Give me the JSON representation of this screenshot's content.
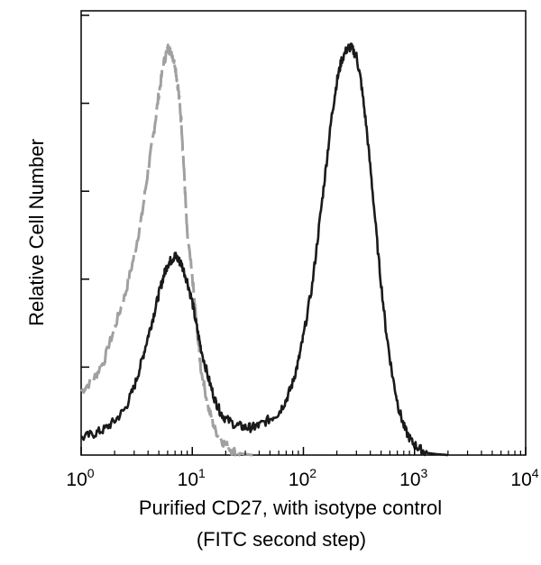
{
  "chart_data": {
    "type": "line",
    "title": "",
    "xlabel_line1": "Purified CD27, with isotype control",
    "xlabel_line2": "(FITC second step)",
    "ylabel": "Relative Cell Number",
    "x_scale": "log",
    "xlim": [
      1,
      10000
    ],
    "ylim": [
      0,
      100
    ],
    "x_ticks": [
      {
        "base": "10",
        "exp": "0",
        "value": 1
      },
      {
        "base": "10",
        "exp": "1",
        "value": 10
      },
      {
        "base": "10",
        "exp": "2",
        "value": 100
      },
      {
        "base": "10",
        "exp": "3",
        "value": 1000
      },
      {
        "base": "10",
        "exp": "4",
        "value": 10000
      }
    ],
    "y_tick_count": 5,
    "grid": false,
    "legend": "none",
    "series": [
      {
        "color": "#a0a0a0",
        "dashed": true,
        "points": [
          [
            1.0,
            15
          ],
          [
            1.3,
            18
          ],
          [
            1.6,
            22
          ],
          [
            2.0,
            30
          ],
          [
            2.5,
            38
          ],
          [
            3.0,
            47
          ],
          [
            3.5,
            56
          ],
          [
            4.0,
            67
          ],
          [
            4.5,
            76
          ],
          [
            5.0,
            85
          ],
          [
            5.5,
            92
          ],
          [
            6.0,
            96
          ],
          [
            6.5,
            95
          ],
          [
            7.0,
            92
          ],
          [
            7.5,
            86
          ],
          [
            8.0,
            78
          ],
          [
            8.5,
            65
          ],
          [
            9.0,
            52
          ],
          [
            10.0,
            42
          ],
          [
            11.0,
            30
          ],
          [
            12.0,
            20
          ],
          [
            14.0,
            11
          ],
          [
            16.0,
            6
          ],
          [
            19.0,
            3
          ],
          [
            23.0,
            1
          ],
          [
            28.0,
            0.3
          ],
          [
            35.0,
            0
          ]
        ]
      },
      {
        "color": "#1a1a1a",
        "dashed": false,
        "points": [
          [
            1.0,
            4
          ],
          [
            1.3,
            5
          ],
          [
            1.6,
            6
          ],
          [
            2.0,
            8
          ],
          [
            2.5,
            11
          ],
          [
            3.0,
            16
          ],
          [
            3.5,
            22
          ],
          [
            4.0,
            28
          ],
          [
            4.5,
            33
          ],
          [
            5.0,
            38
          ],
          [
            5.5,
            42
          ],
          [
            6.0,
            45
          ],
          [
            6.5,
            46
          ],
          [
            7.0,
            47
          ],
          [
            7.5,
            46
          ],
          [
            8.0,
            45
          ],
          [
            9.0,
            41
          ],
          [
            10.0,
            36
          ],
          [
            11.0,
            30
          ],
          [
            12.0,
            25
          ],
          [
            14.0,
            18
          ],
          [
            16.0,
            13
          ],
          [
            18.0,
            10
          ],
          [
            20.0,
            8.5
          ],
          [
            25.0,
            7
          ],
          [
            30.0,
            6.5
          ],
          [
            35.0,
            6.5
          ],
          [
            40.0,
            7
          ],
          [
            50.0,
            8.5
          ],
          [
            60.0,
            10
          ],
          [
            70.0,
            13
          ],
          [
            80.0,
            17
          ],
          [
            90.0,
            22
          ],
          [
            100.0,
            28
          ],
          [
            120.0,
            40
          ],
          [
            140.0,
            55
          ],
          [
            160.0,
            68
          ],
          [
            180.0,
            80
          ],
          [
            200.0,
            88
          ],
          [
            220.0,
            93
          ],
          [
            250.0,
            96
          ],
          [
            270.0,
            96
          ],
          [
            300.0,
            94
          ],
          [
            330.0,
            88
          ],
          [
            370.0,
            77
          ],
          [
            420.0,
            62
          ],
          [
            480.0,
            45
          ],
          [
            550.0,
            30
          ],
          [
            630.0,
            19
          ],
          [
            720.0,
            11
          ],
          [
            820.0,
            6
          ],
          [
            950.0,
            3
          ],
          [
            1100.0,
            1.5
          ],
          [
            1300.0,
            0.5
          ],
          [
            1600.0,
            0.2
          ],
          [
            2000.0,
            0
          ]
        ]
      }
    ]
  }
}
